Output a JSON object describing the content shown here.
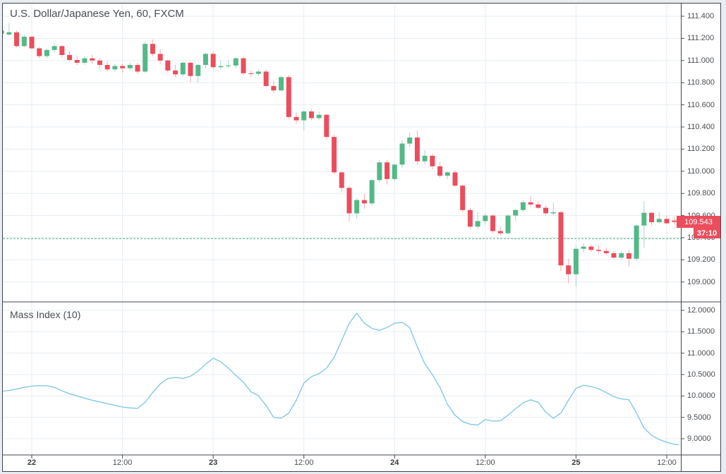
{
  "colors": {
    "up": "#53b987",
    "down": "#eb4d5c",
    "up_wick": "#a9d3cd",
    "down_wick": "#f2abb4",
    "badge_bg": "#eb4d5c",
    "prev_close_line": "#4db381",
    "grid": "#e6edf3",
    "frame": "#40454f",
    "text": "#4a4e53",
    "mass_line": "#84c8e8"
  },
  "chart_data": [
    {
      "type": "candlestick",
      "title": "U.S. Dollar/Japanese Yen, 60, FXCM",
      "symbol": "U.S. Dollar/Japanese Yen",
      "interval": "60",
      "exchange": "FXCM",
      "ylim": [
        108.82,
        111.52
      ],
      "grid": true,
      "y_ticks": [
        "111.400",
        "111.200",
        "111.000",
        "110.800",
        "110.600",
        "110.400",
        "110.200",
        "110.000",
        "109.800",
        "109.600",
        "109.400",
        "109.200",
        "109.000"
      ],
      "x_ticks": [
        {
          "label": "22",
          "bold": true
        },
        {
          "label": "12:00",
          "bold": false
        },
        {
          "label": "23",
          "bold": true
        },
        {
          "label": "12:00",
          "bold": false
        },
        {
          "label": "24",
          "bold": true
        },
        {
          "label": "12:00",
          "bold": false
        },
        {
          "label": "25",
          "bold": true
        },
        {
          "label": "12:00",
          "bold": false
        }
      ],
      "last_price": 109.543,
      "last_price_label": "109.543",
      "countdown_label": "37:10",
      "prev_close_level": 109.392,
      "candles": [
        [
          111.24,
          111.3,
          111.23,
          111.27
        ],
        [
          111.235,
          111.34,
          111.225,
          111.255
        ],
        [
          111.255,
          111.27,
          111.12,
          111.13
        ],
        [
          111.13,
          111.23,
          111.12,
          111.215
        ],
        [
          111.215,
          111.22,
          111.1,
          111.11
        ],
        [
          111.11,
          111.12,
          111.02,
          111.04
        ],
        [
          111.04,
          111.11,
          111.02,
          111.095
        ],
        [
          111.095,
          111.15,
          111.07,
          111.13
        ],
        [
          111.13,
          111.14,
          111.03,
          111.05
        ],
        [
          111.05,
          111.09,
          110.99,
          111.005
        ],
        [
          111.005,
          111.04,
          110.96,
          110.98
        ],
        [
          110.98,
          111.04,
          110.96,
          111.02
        ],
        [
          111.02,
          111.05,
          110.97,
          111.0
        ],
        [
          111.0,
          111.02,
          110.93,
          110.96
        ],
        [
          110.96,
          110.99,
          110.9,
          110.92
        ],
        [
          110.92,
          110.97,
          110.9,
          110.95
        ],
        [
          110.95,
          110.97,
          110.89,
          110.93
        ],
        [
          110.93,
          110.98,
          110.91,
          110.96
        ],
        [
          110.96,
          110.98,
          110.88,
          110.9
        ],
        [
          110.9,
          111.17,
          110.89,
          111.15
        ],
        [
          111.15,
          111.19,
          111.04,
          111.06
        ],
        [
          111.06,
          111.1,
          110.97,
          111.0
        ],
        [
          111.0,
          111.01,
          110.89,
          110.91
        ],
        [
          110.91,
          110.96,
          110.85,
          110.875
        ],
        [
          110.875,
          110.99,
          110.855,
          110.98
        ],
        [
          110.98,
          110.99,
          110.8,
          110.86
        ],
        [
          110.86,
          110.97,
          110.8,
          110.96
        ],
        [
          110.96,
          111.07,
          110.93,
          111.06
        ],
        [
          111.06,
          111.08,
          110.92,
          110.94
        ],
        [
          110.94,
          111.0,
          110.92,
          110.95
        ],
        [
          110.95,
          111.0,
          110.93,
          110.955
        ],
        [
          110.955,
          111.03,
          110.93,
          111.02
        ],
        [
          111.02,
          111.03,
          110.87,
          110.885
        ],
        [
          110.885,
          110.91,
          110.85,
          110.88
        ],
        [
          110.88,
          110.92,
          110.86,
          110.9
        ],
        [
          110.9,
          110.92,
          110.76,
          110.77
        ],
        [
          110.77,
          110.82,
          110.71,
          110.73
        ],
        [
          110.73,
          110.86,
          110.72,
          110.85
        ],
        [
          110.85,
          110.87,
          110.47,
          110.49
        ],
        [
          110.49,
          110.53,
          110.43,
          110.46
        ],
        [
          110.46,
          110.55,
          110.37,
          110.54
        ],
        [
          110.54,
          110.56,
          110.46,
          110.48
        ],
        [
          110.48,
          110.54,
          110.46,
          110.51
        ],
        [
          110.51,
          110.52,
          110.29,
          110.31
        ],
        [
          110.31,
          110.33,
          109.97,
          109.99
        ],
        [
          109.99,
          110.0,
          109.81,
          109.85
        ],
        [
          109.85,
          109.87,
          109.55,
          109.62
        ],
        [
          109.62,
          109.76,
          109.57,
          109.74
        ],
        [
          109.74,
          109.8,
          109.66,
          109.71
        ],
        [
          109.71,
          109.93,
          109.69,
          109.92
        ],
        [
          109.92,
          110.1,
          109.9,
          110.08
        ],
        [
          110.08,
          110.1,
          109.88,
          109.93
        ],
        [
          109.93,
          110.07,
          109.9,
          110.06
        ],
        [
          110.06,
          110.28,
          110.03,
          110.25
        ],
        [
          110.25,
          110.35,
          110.22,
          110.305
        ],
        [
          110.305,
          110.37,
          110.06,
          110.09
        ],
        [
          110.09,
          110.19,
          110.06,
          110.14
        ],
        [
          110.14,
          110.155,
          110.02,
          110.045
        ],
        [
          110.045,
          110.085,
          109.94,
          109.96
        ],
        [
          109.96,
          110.0,
          109.93,
          109.99
        ],
        [
          109.99,
          110.01,
          109.86,
          109.87
        ],
        [
          109.87,
          109.88,
          109.63,
          109.65
        ],
        [
          109.65,
          109.67,
          109.48,
          109.5
        ],
        [
          109.5,
          109.63,
          109.48,
          109.55
        ],
        [
          109.55,
          109.62,
          109.52,
          109.6
        ],
        [
          109.6,
          109.61,
          109.44,
          109.46
        ],
        [
          109.46,
          109.5,
          109.42,
          109.44
        ],
        [
          109.44,
          109.61,
          109.43,
          109.6
        ],
        [
          109.6,
          109.66,
          109.55,
          109.65
        ],
        [
          109.65,
          109.74,
          109.63,
          109.72
        ],
        [
          109.72,
          109.78,
          109.68,
          109.7
        ],
        [
          109.7,
          109.73,
          109.66,
          109.67
        ],
        [
          109.67,
          109.69,
          109.6,
          109.62
        ],
        [
          109.62,
          109.72,
          109.6,
          109.63
        ],
        [
          109.63,
          109.64,
          109.1,
          109.15
        ],
        [
          109.15,
          109.21,
          108.99,
          109.07
        ],
        [
          109.07,
          109.33,
          108.96,
          109.3
        ],
        [
          109.3,
          109.35,
          109.27,
          109.32
        ],
        [
          109.32,
          109.34,
          109.27,
          109.29
        ],
        [
          109.29,
          109.33,
          109.26,
          109.28
        ],
        [
          109.28,
          109.31,
          109.24,
          109.26
        ],
        [
          109.26,
          109.28,
          109.21,
          109.22
        ],
        [
          109.22,
          109.28,
          109.2,
          109.26
        ],
        [
          109.26,
          109.29,
          109.14,
          109.21
        ],
        [
          109.21,
          109.52,
          109.19,
          109.51
        ],
        [
          109.51,
          109.73,
          109.31,
          109.625
        ],
        [
          109.625,
          109.63,
          109.51,
          109.54
        ],
        [
          109.54,
          109.63,
          109.53,
          109.57
        ],
        [
          109.57,
          109.6,
          109.52,
          109.53
        ],
        [
          109.555,
          109.59,
          109.52,
          109.543
        ]
      ]
    },
    {
      "type": "line",
      "title": "Mass Index (10)",
      "period": 10,
      "ylim": [
        8.62,
        12.2
      ],
      "grid": true,
      "y_ticks": [
        "12.0000",
        "11.5000",
        "11.0000",
        "10.5000",
        "10.0000",
        "9.5000",
        "9.0000"
      ],
      "color": "#84c8e8",
      "left_edge_value": 10.11,
      "right_edge_value": 8.86,
      "values": [
        10.13,
        10.16,
        10.2,
        10.23,
        10.24,
        10.24,
        10.2,
        10.12,
        10.05,
        10.0,
        9.95,
        9.9,
        9.86,
        9.82,
        9.78,
        9.74,
        9.72,
        9.71,
        9.85,
        10.08,
        10.28,
        10.41,
        10.43,
        10.41,
        10.46,
        10.58,
        10.74,
        10.88,
        10.8,
        10.65,
        10.48,
        10.32,
        10.1,
        10.0,
        9.78,
        9.5,
        9.48,
        9.6,
        9.9,
        10.3,
        10.45,
        10.52,
        10.65,
        10.9,
        11.3,
        11.7,
        11.93,
        11.7,
        11.58,
        11.53,
        11.6,
        11.7,
        11.72,
        11.6,
        11.15,
        10.75,
        10.5,
        10.2,
        9.8,
        9.55,
        9.4,
        9.34,
        9.32,
        9.45,
        9.41,
        9.42,
        9.55,
        9.7,
        9.84,
        9.91,
        9.85,
        9.62,
        9.48,
        9.6,
        9.9,
        10.18,
        10.25,
        10.22,
        10.17,
        10.08,
        9.98,
        9.93,
        9.91,
        9.6,
        9.25,
        9.08,
        8.98,
        8.92,
        8.87
      ]
    }
  ]
}
